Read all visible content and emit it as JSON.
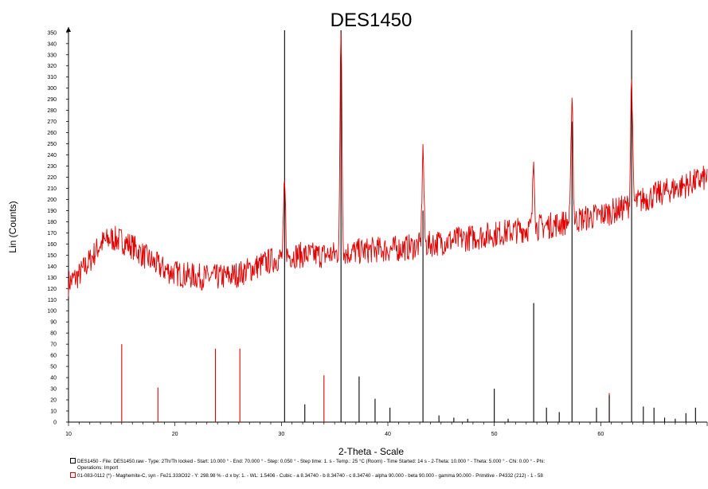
{
  "chart_data": {
    "type": "line",
    "title": "DES1450",
    "xlabel": "2-Theta - Scale",
    "ylabel": "Lin (Counts)",
    "xlim": [
      10,
      70
    ],
    "ylim": [
      0,
      352
    ],
    "x_ticks": [
      10,
      20,
      30,
      40,
      50,
      60
    ],
    "y_ticks": [
      0,
      10,
      20,
      30,
      40,
      50,
      60,
      70,
      80,
      90,
      100,
      110,
      120,
      130,
      140,
      150,
      160,
      170,
      180,
      190,
      200,
      210,
      220,
      230,
      240,
      250,
      260,
      270,
      280,
      290,
      300,
      310,
      320,
      330,
      340,
      350
    ],
    "grid": false,
    "series": [
      {
        "color": "#e00000",
        "baseline": {
          "x": [
            10,
            11,
            12,
            13,
            14,
            15,
            16,
            17,
            18,
            19,
            20,
            21,
            22,
            23,
            24,
            25,
            26,
            27,
            28,
            29,
            30,
            31,
            32,
            33,
            34,
            35,
            36,
            37,
            38,
            39,
            40,
            42,
            44,
            46,
            48,
            50,
            52,
            54,
            56,
            58,
            60,
            62,
            64,
            66,
            68,
            70
          ],
          "y": [
            125,
            132,
            145,
            160,
            165,
            163,
            158,
            150,
            143,
            137,
            134,
            132,
            131,
            130,
            130,
            131,
            133,
            137,
            141,
            145,
            148,
            150,
            150,
            150,
            150,
            151,
            152,
            153,
            154,
            155,
            155,
            157,
            160,
            163,
            166,
            169,
            172,
            175,
            178,
            182,
            186,
            192,
            200,
            207,
            213,
            220
          ]
        },
        "noise_amplitude": 12,
        "peaks": [
          {
            "x": 30.3,
            "height": 212
          },
          {
            "x": 35.6,
            "height": 352
          },
          {
            "x": 43.3,
            "height": 245
          },
          {
            "x": 53.7,
            "height": 237
          },
          {
            "x": 57.3,
            "height": 297
          },
          {
            "x": 62.9,
            "height": 308
          }
        ]
      }
    ],
    "reference_lines": [
      {
        "color": "#e00000",
        "x": [
          15.0,
          18.4,
          23.8,
          26.1,
          34.0,
          60.8
        ],
        "heights": [
          70,
          31,
          66,
          66,
          42,
          26
        ]
      },
      {
        "color": "#000000",
        "x": [
          30.3,
          32.2,
          35.6,
          37.3,
          38.8,
          40.2,
          43.3,
          44.8,
          46.2,
          47.5,
          50.0,
          51.3,
          53.7,
          54.9,
          56.1,
          57.3,
          59.6,
          60.8,
          62.9,
          64.0,
          65.0,
          66.0,
          67.0,
          68.0,
          68.9
        ],
        "heights": [
          352,
          16,
          352,
          41,
          21,
          13,
          190,
          6,
          4,
          3,
          30,
          3,
          107,
          13,
          9,
          270,
          13,
          24,
          352,
          14,
          13,
          4,
          3,
          8,
          13
        ]
      }
    ]
  },
  "footer": {
    "line1": "DES1450 - File: DES1450.raw - Type: 2Th/Th locked - Start: 10.000 ° - End: 70.000 ° - Step: 0.050 ° - Step time: 1. s - Temp.: 25 °C (Room) - Time Started: 14 s - 2-Theta: 10.000 ° - Theta: 5.000 ° - Chi: 0.00 ° - Phi:",
    "line2": "Operations: Import",
    "line3": "01-083-0112 (*) - Maghemite-C, syn - Fe21.333O32 - Y: 298.98 % - d x by: 1. - WL: 1.5406 - Cubic - a 8.34740 - b 8.34740 - c 8.34740 - alpha 90.000 - beta 90.000 - gamma 90.000 - Primitive - P4332 (212) - 1 - 58"
  }
}
